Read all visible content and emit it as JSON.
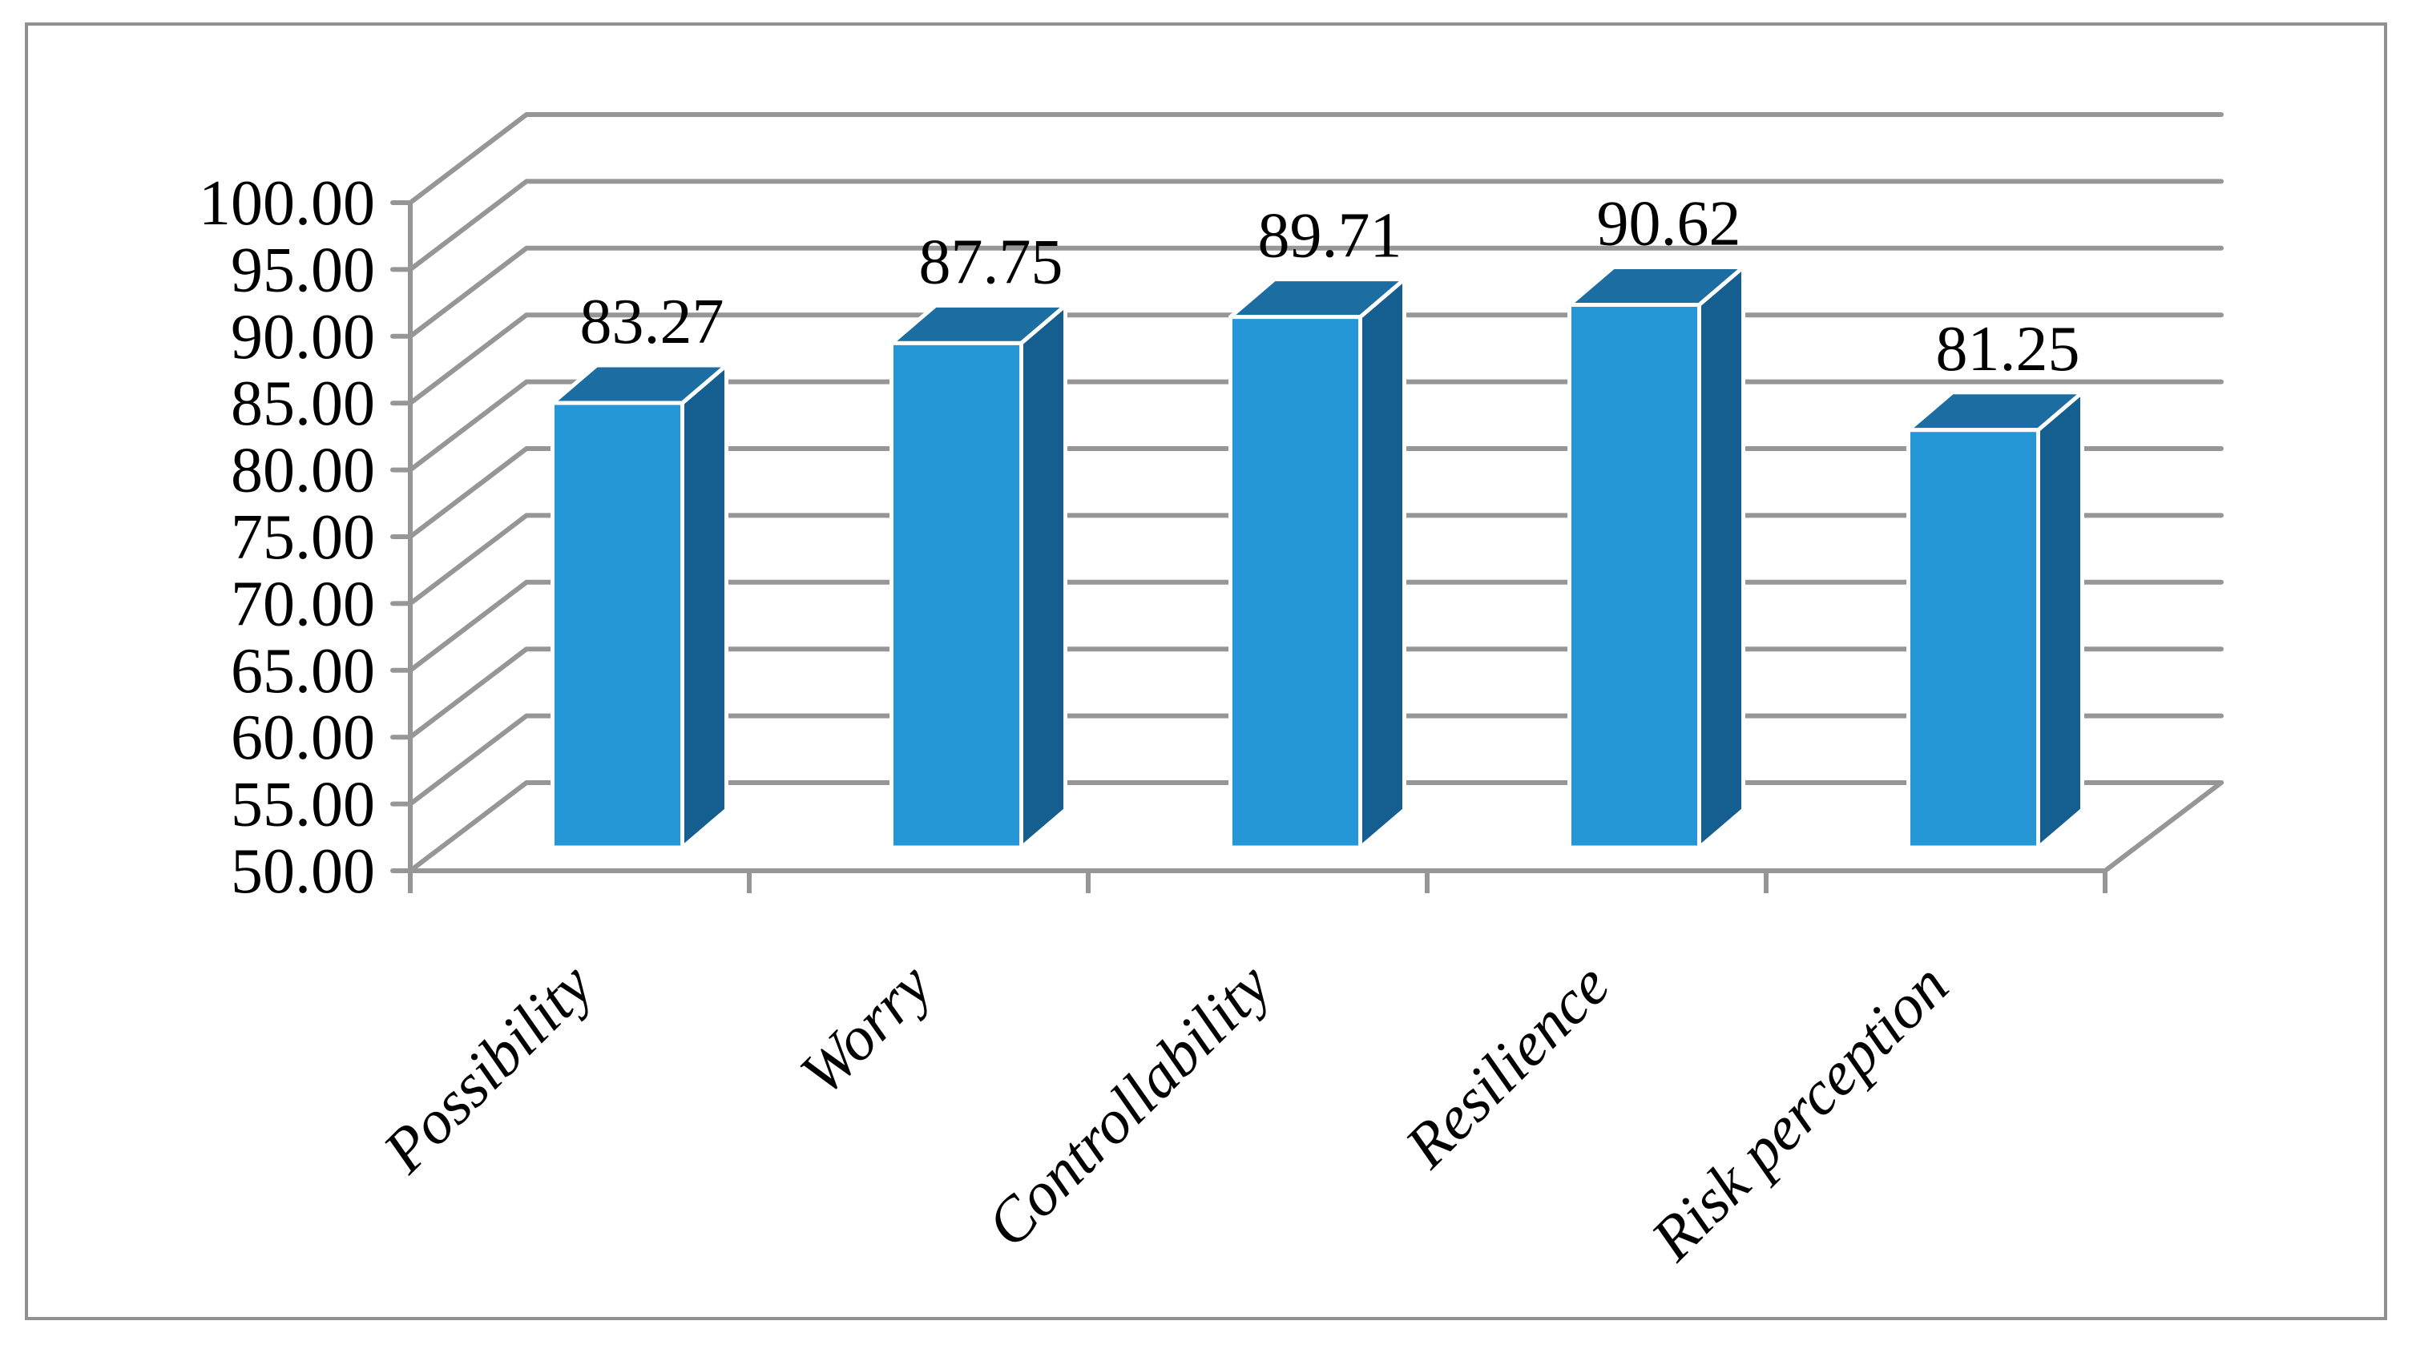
{
  "figure": {
    "background": "#ffffff",
    "border_color": "#919191"
  },
  "chart_data": {
    "type": "bar",
    "projection": "3d-column",
    "title": "",
    "xlabel": "",
    "ylabel": "",
    "legend": false,
    "grid": true,
    "categories": [
      "Possibility",
      "Worry",
      "Controllability",
      "Resilience",
      "Risk perception"
    ],
    "values": [
      83.27,
      87.75,
      89.71,
      90.62,
      81.25
    ],
    "data_labels": [
      "83.27",
      "87.75",
      "89.71",
      "90.62",
      "81.25"
    ],
    "y_axis": {
      "min": 50,
      "max": 100,
      "step": 5,
      "tick_labels": [
        "100.00",
        "95.00",
        "90.00",
        "85.00",
        "80.00",
        "75.00",
        "70.00",
        "65.00",
        "60.00",
        "55.00",
        "50.00"
      ]
    },
    "colors": {
      "bar_front": "#2697D6",
      "bar_top": "#1B6DA2",
      "bar_side": "#155E90",
      "bar_edge": "#ffffff",
      "gridline": "#969696",
      "axis": "#969696",
      "text": "#000000"
    }
  }
}
